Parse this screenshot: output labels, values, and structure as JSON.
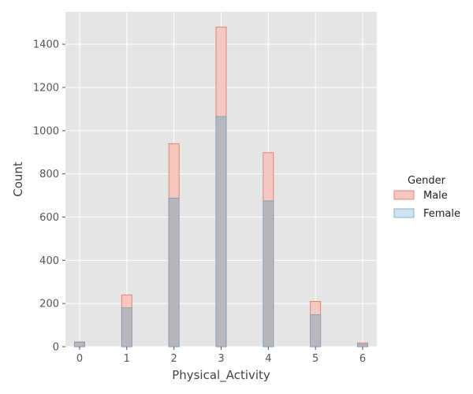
{
  "chart_data": {
    "type": "bar",
    "title": "",
    "xlabel": "Physical_Activity",
    "ylabel": "Count",
    "xlim": [
      -0.3,
      6.3
    ],
    "ylim": [
      0,
      1550
    ],
    "grid": true,
    "xticks": [
      0,
      1,
      2,
      3,
      4,
      5,
      6
    ],
    "yticks": [
      0,
      200,
      400,
      600,
      800,
      1000,
      1200,
      1400
    ],
    "categories": [
      0,
      1,
      2,
      3,
      4,
      5,
      6
    ],
    "series": [
      {
        "name": "Male",
        "values": [
          22,
          240,
          940,
          1480,
          898,
          210,
          18
        ],
        "fill": "#F4C7C0",
        "stroke": "#E2705C"
      },
      {
        "name": "Female",
        "values": [
          20,
          180,
          688,
          1065,
          675,
          148,
          12
        ],
        "fill": "#B9B7BC",
        "stroke": "#6D9EC0"
      }
    ],
    "legend": {
      "title": "Gender",
      "position": "right",
      "entries": [
        "Male",
        "Female"
      ],
      "swatch_fills": [
        "#F4C7C0",
        "#CFE3F0"
      ],
      "swatch_strokes": [
        "#E2705C",
        "#6D9EC0"
      ]
    },
    "background": "#E5E5E5",
    "grid_color": "#FFFFFF"
  }
}
